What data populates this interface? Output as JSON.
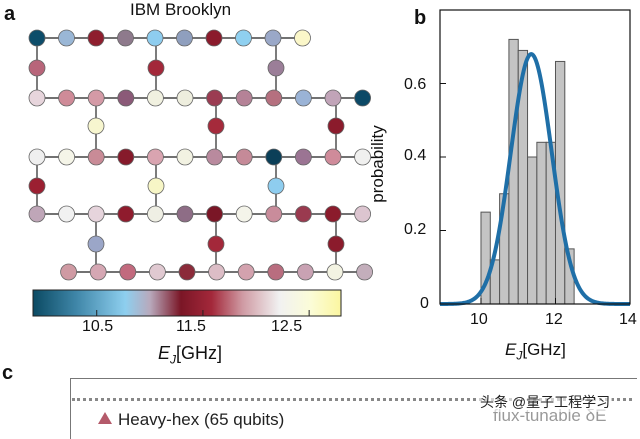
{
  "panel_a": {
    "letter": "a",
    "title": "IBM Brooklyn",
    "colorbar": {
      "ticks": [
        "10.5",
        "11.5",
        "12.5"
      ],
      "tick_values": [
        10.5,
        11.5,
        12.5
      ],
      "range": [
        9.9,
        12.8
      ],
      "label_E": "E",
      "label_sub": "J",
      "label_unit": "[GHz]",
      "colors": [
        "#0b4a63",
        "#3f86a8",
        "#8ecfef",
        "#b8a9bc",
        "#7a1626",
        "#a3283a",
        "#cf9aa3",
        "#f1f1f1",
        "#fbfcd8",
        "#fbf6a0"
      ]
    }
  },
  "panel_b": {
    "letter": "b",
    "ylabel": "probability",
    "xlabel_E": "E",
    "xlabel_sub": "J",
    "xlabel_unit": "[GHz]",
    "xticks": [
      "10",
      "12",
      "14"
    ],
    "yticks": [
      "0",
      "0.2",
      "0.4",
      "0.6"
    ]
  },
  "panel_c": {
    "letter": "c",
    "legend_label": "Heavy-hex (65 qubits)",
    "annotation": "flux-tunable δE",
    "watermark": "头条 @量子工程学习"
  },
  "chart_data": {
    "type": "bar",
    "title": "",
    "xlabel": "E_J [GHz]",
    "ylabel": "probability",
    "xlim": [
      8.9,
      14
    ],
    "ylim": [
      0,
      0.8
    ],
    "bin_edges": [
      10.0,
      10.25,
      10.5,
      10.75,
      11.0,
      11.25,
      11.5,
      11.75,
      12.0,
      12.25,
      12.5
    ],
    "values": [
      0.25,
      0.12,
      0.3,
      0.72,
      0.69,
      0.4,
      0.44,
      0.44,
      0.66,
      0.15
    ],
    "bar_color": "#c4c4c4",
    "fit_curve": {
      "type": "gaussian",
      "mean": 11.35,
      "std": 0.55,
      "peak": 0.68,
      "color": "#1f6fa7"
    },
    "grid": false
  },
  "lattice": {
    "rows": [
      {
        "nodes": [
          [
            0,
            "#0d4d6a"
          ],
          [
            1,
            "#9ab7d6"
          ],
          [
            2,
            "#8e1e2e"
          ],
          [
            3,
            "#8e7a8c"
          ],
          [
            4,
            "#8ecdef"
          ],
          [
            5,
            "#8f9fbe"
          ],
          [
            6,
            "#8b1b2c"
          ],
          [
            7,
            "#8fd0f0"
          ],
          [
            8,
            "#9aa8c8"
          ],
          [
            9,
            "#fbf7c9"
          ]
        ]
      },
      {
        "nodes": [
          [
            0,
            "#b8657a"
          ],
          [
            4,
            "#a3283a"
          ],
          [
            8,
            "#9b7e98"
          ]
        ]
      },
      {
        "nodes": [
          [
            0,
            "#e7d5dc"
          ],
          [
            1,
            "#cf8b98"
          ],
          [
            2,
            "#d49aa6"
          ],
          [
            3,
            "#8b5a78"
          ],
          [
            4,
            "#f1f1e0"
          ],
          [
            5,
            "#eeeede"
          ],
          [
            6,
            "#9b3c52"
          ],
          [
            7,
            "#b58297"
          ],
          [
            8,
            "#b5707f"
          ],
          [
            9,
            "#9ab3d6"
          ],
          [
            10,
            "#c1a4b8"
          ],
          [
            11,
            "#0c4966"
          ]
        ]
      },
      {
        "nodes": [
          [
            2,
            "#f7f6cf"
          ],
          [
            6,
            "#a52a3b"
          ],
          [
            10,
            "#8b1b2c"
          ]
        ]
      },
      {
        "nodes": [
          [
            0,
            "#efefef"
          ],
          [
            1,
            "#f5f5e8"
          ],
          [
            2,
            "#c98b97"
          ],
          [
            3,
            "#861a2b"
          ],
          [
            4,
            "#d9a4b0"
          ],
          [
            5,
            "#f2f2e2"
          ],
          [
            6,
            "#b98a9e"
          ],
          [
            7,
            "#c58a98"
          ],
          [
            8,
            "#0b3f58"
          ],
          [
            9,
            "#9b7493"
          ],
          [
            10,
            "#cf8b9a"
          ],
          [
            11,
            "#f0f0ef"
          ]
        ]
      },
      {
        "nodes": [
          [
            0,
            "#9b1f31"
          ],
          [
            4,
            "#f7f6c6"
          ],
          [
            8,
            "#8ecdef"
          ]
        ]
      },
      {
        "nodes": [
          [
            0,
            "#bfa6b8"
          ],
          [
            1,
            "#f1f1f1"
          ],
          [
            2,
            "#e6d4dc"
          ],
          [
            3,
            "#8f1b2d"
          ],
          [
            4,
            "#efefe4"
          ],
          [
            5,
            "#8e6d86"
          ],
          [
            6,
            "#7a1626"
          ],
          [
            7,
            "#f4f4ea"
          ],
          [
            8,
            "#c98c9b"
          ],
          [
            9,
            "#9a3a4f"
          ],
          [
            10,
            "#8b1b2c"
          ],
          [
            11,
            "#dcc5d0"
          ]
        ]
      },
      {
        "nodes": [
          [
            2,
            "#9ba6c8"
          ],
          [
            6,
            "#a3283a"
          ],
          [
            10,
            "#8b1b2c"
          ]
        ]
      },
      {
        "nodes": [
          [
            1,
            "#cf9aa3"
          ],
          [
            2,
            "#d5a7b3"
          ],
          [
            3,
            "#c26a7e"
          ],
          [
            4,
            "#e0c9d1"
          ],
          [
            5,
            "#8b2b3a"
          ],
          [
            6,
            "#dcbdc6"
          ],
          [
            7,
            "#d3a2ae"
          ],
          [
            8,
            "#b96d7f"
          ],
          [
            9,
            "#c9a2b3"
          ],
          [
            10,
            "#f3f3e2"
          ],
          [
            11,
            "#c3aebb"
          ]
        ]
      }
    ]
  }
}
